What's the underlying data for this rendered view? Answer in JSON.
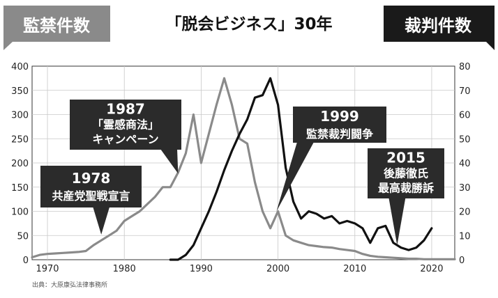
{
  "chart_data": {
    "type": "line",
    "title": "「脱会ビジネス」30年",
    "left_axis_label": "監禁件数",
    "right_axis_label": "裁判件数",
    "xlim": [
      1968,
      2023
    ],
    "x_ticks": [
      "1970",
      "1980",
      "1990",
      "2000",
      "2010",
      "2020"
    ],
    "y_left_lim": [
      0,
      400
    ],
    "y_left_ticks": [
      "0",
      "50",
      "100",
      "150",
      "200",
      "250",
      "300",
      "350",
      "400"
    ],
    "y_right_lim": [
      0,
      80
    ],
    "y_right_ticks": [
      "0",
      "10",
      "20",
      "30",
      "40",
      "50",
      "60",
      "70",
      "80"
    ],
    "grid": true,
    "series": [
      {
        "name": "監禁件数",
        "axis": "left",
        "color": "#8a8a8a",
        "points": [
          [
            1968,
            5
          ],
          [
            1969,
            10
          ],
          [
            1970,
            12
          ],
          [
            1971,
            13
          ],
          [
            1972,
            14
          ],
          [
            1973,
            15
          ],
          [
            1974,
            16
          ],
          [
            1975,
            18
          ],
          [
            1976,
            30
          ],
          [
            1977,
            40
          ],
          [
            1978,
            50
          ],
          [
            1979,
            60
          ],
          [
            1980,
            80
          ],
          [
            1981,
            90
          ],
          [
            1982,
            100
          ],
          [
            1983,
            115
          ],
          [
            1984,
            130
          ],
          [
            1985,
            150
          ],
          [
            1986,
            150
          ],
          [
            1987,
            180
          ],
          [
            1988,
            220
          ],
          [
            1989,
            300
          ],
          [
            1990,
            200
          ],
          [
            1991,
            260
          ],
          [
            1992,
            320
          ],
          [
            1993,
            375
          ],
          [
            1994,
            320
          ],
          [
            1995,
            250
          ],
          [
            1996,
            240
          ],
          [
            1997,
            160
          ],
          [
            1998,
            100
          ],
          [
            1999,
            65
          ],
          [
            2000,
            100
          ],
          [
            2001,
            50
          ],
          [
            2002,
            40
          ],
          [
            2003,
            35
          ],
          [
            2004,
            30
          ],
          [
            2005,
            28
          ],
          [
            2006,
            26
          ],
          [
            2007,
            25
          ],
          [
            2008,
            22
          ],
          [
            2009,
            20
          ],
          [
            2010,
            18
          ],
          [
            2011,
            12
          ],
          [
            2012,
            8
          ],
          [
            2013,
            6
          ],
          [
            2014,
            5
          ],
          [
            2015,
            4
          ],
          [
            2016,
            3
          ],
          [
            2017,
            2
          ],
          [
            2018,
            2
          ],
          [
            2019,
            1
          ],
          [
            2020,
            1
          ],
          [
            2023,
            1
          ]
        ]
      },
      {
        "name": "裁判件数",
        "axis": "right",
        "color": "#111111",
        "points": [
          [
            1986,
            0
          ],
          [
            1987,
            0
          ],
          [
            1988,
            2
          ],
          [
            1989,
            6
          ],
          [
            1990,
            13
          ],
          [
            1991,
            20
          ],
          [
            1992,
            28
          ],
          [
            1993,
            37
          ],
          [
            1994,
            45
          ],
          [
            1995,
            52
          ],
          [
            1996,
            58
          ],
          [
            1997,
            67
          ],
          [
            1998,
            68
          ],
          [
            1999,
            75
          ],
          [
            2000,
            64
          ],
          [
            2001,
            38
          ],
          [
            2002,
            24
          ],
          [
            2003,
            17
          ],
          [
            2004,
            20
          ],
          [
            2005,
            19
          ],
          [
            2006,
            17
          ],
          [
            2007,
            18
          ],
          [
            2008,
            15
          ],
          [
            2009,
            16
          ],
          [
            2010,
            15
          ],
          [
            2011,
            13
          ],
          [
            2012,
            7
          ],
          [
            2013,
            13
          ],
          [
            2014,
            14
          ],
          [
            2015,
            7
          ],
          [
            2016,
            5
          ],
          [
            2017,
            4
          ],
          [
            2018,
            5
          ],
          [
            2019,
            8
          ],
          [
            2020,
            13
          ]
        ]
      }
    ],
    "annotations": [
      {
        "lines": [
          "1978",
          "共産党聖戦宣言"
        ],
        "x": 1978,
        "y_left": 50
      },
      {
        "lines": [
          "1987",
          "「霊感商法」",
          "キャンペーン"
        ],
        "x": 1987,
        "y_left": 180
      },
      {
        "lines": [
          "1999",
          "監禁裁判闘争"
        ],
        "x": 1999,
        "y_left": 100
      },
      {
        "lines": [
          "2015",
          "後藤徹氏",
          "最高裁勝訴"
        ],
        "x": 2015,
        "y_left": 35
      }
    ],
    "source": "出典：大原康弘法律事務所"
  },
  "colors": {
    "monitored": "#8a8a8a",
    "court": "#111111",
    "badge_dark": "#1a1a1a",
    "badge_gray": "#8a8a8a",
    "annotation_bg": "#2b2b2b"
  }
}
